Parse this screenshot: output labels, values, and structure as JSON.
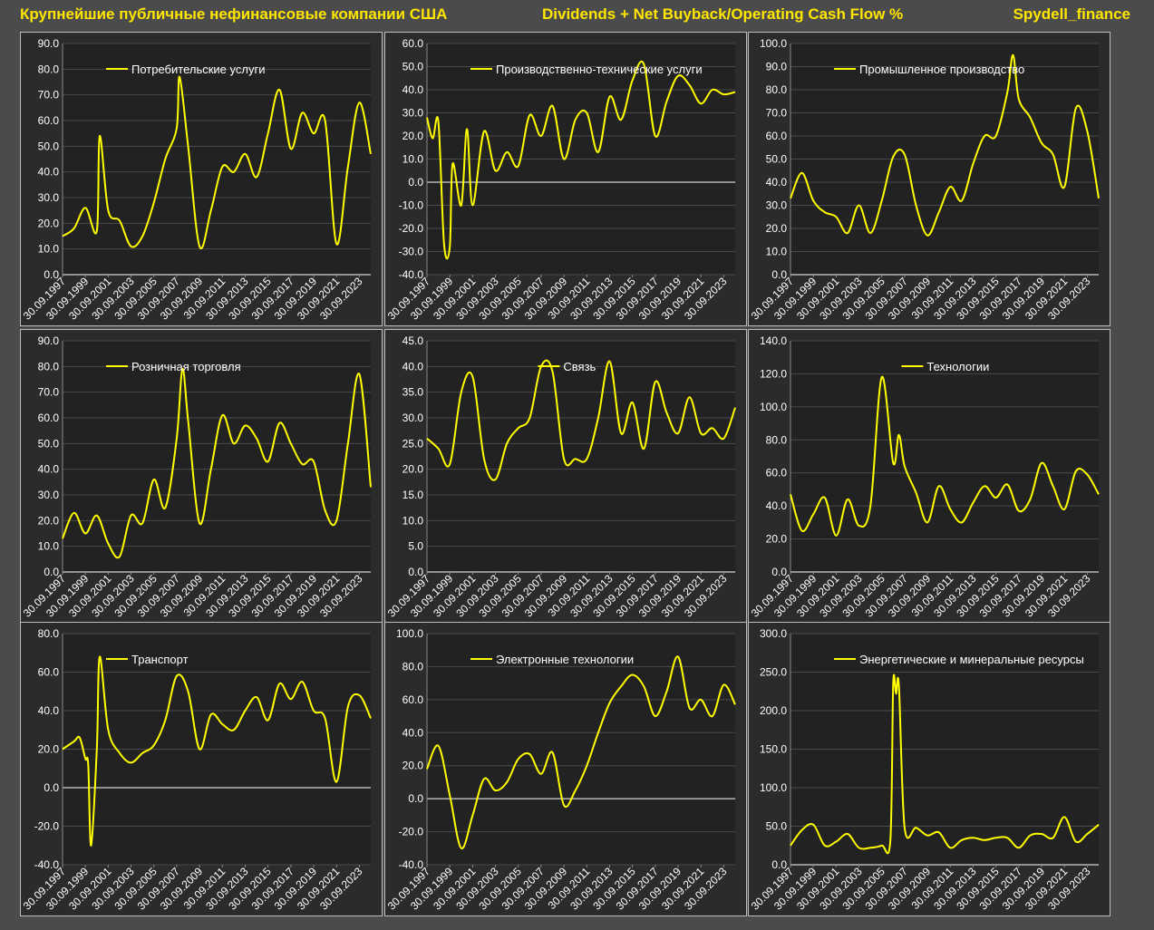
{
  "header": {
    "left": "Крупнейшие публичные нефинансовые компании США",
    "middle": "Dividends + Net Buyback/Operating Cash Flow %",
    "right": "Spydell_finance"
  },
  "colors": {
    "line": "#ffff00",
    "background": "#2b2b2b",
    "page": "#4b4b4b",
    "grid": "#4a4a4a",
    "text": "#ffffff"
  },
  "x_tick_labels": [
    "30.09.1997",
    "30.09.1999",
    "30.09.2001",
    "30.09.2003",
    "30.09.2005",
    "30.09.2007",
    "30.09.2009",
    "30.09.2011",
    "30.09.2013",
    "30.09.2015",
    "30.09.2017",
    "30.09.2019",
    "30.09.2021",
    "30.09.2023"
  ],
  "chart_data": [
    {
      "type": "line",
      "title": "",
      "legend": "Потребительские услуги",
      "legend_position": "top-left",
      "ylim": [
        0,
        90
      ],
      "y_ticks": [
        "0.0",
        "10.0",
        "20.0",
        "30.0",
        "40.0",
        "50.0",
        "60.0",
        "70.0",
        "80.0",
        "90.0"
      ],
      "x_range": [
        "30.09.1997",
        "30.09.2024"
      ],
      "grid": true,
      "series": [
        {
          "name": "Потребительские услуги",
          "x": [
            "30.09.1997",
            "30.09.1998",
            "30.09.1999",
            "30.09.2000",
            "31.12.2000",
            "30.09.2001",
            "30.09.2002",
            "30.09.2003",
            "30.09.2004",
            "30.09.2005",
            "30.09.2006",
            "30.09.2007",
            "31.12.2007",
            "30.09.2008",
            "30.09.2009",
            "30.09.2010",
            "30.09.2011",
            "30.09.2012",
            "30.09.2013",
            "30.09.2014",
            "30.09.2015",
            "30.09.2016",
            "30.09.2017",
            "30.09.2018",
            "30.09.2019",
            "30.09.2020",
            "30.09.2021",
            "30.09.2022",
            "30.09.2023",
            "30.09.2024"
          ],
          "values": [
            15,
            18,
            26,
            17,
            54,
            25,
            21,
            11,
            15,
            28,
            45,
            57,
            77,
            50,
            11,
            25,
            42,
            40,
            47,
            38,
            55,
            72,
            49,
            63,
            55,
            60,
            12,
            42,
            67,
            47
          ]
        }
      ]
    },
    {
      "type": "line",
      "title": "",
      "legend": "Производственно-технические услуги",
      "legend_position": "top-left",
      "ylim": [
        -40,
        60
      ],
      "y_ticks": [
        "-40.0",
        "-30.0",
        "-20.0",
        "-10.0",
        "0.0",
        "10.0",
        "20.0",
        "30.0",
        "40.0",
        "50.0",
        "60.0"
      ],
      "x_range": [
        "30.09.1997",
        "30.09.2024"
      ],
      "grid": true,
      "series": [
        {
          "name": "Производственно-технические услуги",
          "x": [
            "30.09.1997",
            "31.03.1998",
            "30.09.1998",
            "31.03.1999",
            "30.09.1999",
            "31.12.1999",
            "30.09.2000",
            "31.03.2001",
            "30.09.2001",
            "30.09.2002",
            "30.09.2003",
            "30.09.2004",
            "30.09.2005",
            "30.09.2006",
            "30.09.2007",
            "30.09.2008",
            "30.09.2009",
            "30.09.2010",
            "30.09.2011",
            "30.09.2012",
            "30.09.2013",
            "30.09.2014",
            "30.09.2015",
            "30.09.2016",
            "30.09.2017",
            "30.09.2018",
            "30.09.2019",
            "30.09.2020",
            "30.09.2021",
            "30.09.2022",
            "30.09.2023",
            "30.09.2024"
          ],
          "values": [
            28,
            19,
            26,
            -27,
            -28,
            8,
            -10,
            23,
            -10,
            22,
            5,
            13,
            7,
            29,
            20,
            33,
            10,
            27,
            30,
            13,
            37,
            27,
            44,
            51,
            20,
            35,
            46,
            42,
            34,
            40,
            38,
            39
          ]
        }
      ]
    },
    {
      "type": "line",
      "title": "",
      "legend": "Промышленное производство",
      "legend_position": "top-left",
      "ylim": [
        0,
        100
      ],
      "y_ticks": [
        "0.0",
        "10.0",
        "20.0",
        "30.0",
        "40.0",
        "50.0",
        "60.0",
        "70.0",
        "80.0",
        "90.0",
        "100.0"
      ],
      "x_range": [
        "30.09.1997",
        "30.09.2024"
      ],
      "grid": true,
      "series": [
        {
          "name": "Промышленное производство",
          "x": [
            "30.09.1997",
            "30.09.1998",
            "30.09.1999",
            "30.09.2000",
            "30.09.2001",
            "30.09.2002",
            "30.09.2003",
            "30.09.2004",
            "30.09.2005",
            "30.09.2006",
            "30.09.2007",
            "30.09.2008",
            "30.09.2009",
            "30.09.2010",
            "30.09.2011",
            "30.09.2012",
            "30.09.2013",
            "30.09.2014",
            "30.09.2015",
            "30.09.2016",
            "31.03.2017",
            "30.09.2017",
            "30.09.2018",
            "30.09.2019",
            "30.09.2020",
            "30.09.2021",
            "30.09.2022",
            "30.09.2023",
            "30.09.2024"
          ],
          "values": [
            33,
            44,
            32,
            27,
            25,
            18,
            30,
            18,
            32,
            51,
            52,
            30,
            17,
            27,
            38,
            32,
            48,
            60,
            60,
            79,
            95,
            76,
            68,
            57,
            52,
            38,
            72,
            62,
            33
          ]
        }
      ]
    },
    {
      "type": "line",
      "title": "",
      "legend": "Розничная торговля",
      "legend_position": "top-left",
      "ylim": [
        0,
        90
      ],
      "y_ticks": [
        "0.0",
        "10.0",
        "20.0",
        "30.0",
        "40.0",
        "50.0",
        "60.0",
        "70.0",
        "80.0",
        "90.0"
      ],
      "x_range": [
        "30.09.1997",
        "30.09.2024"
      ],
      "grid": true,
      "series": [
        {
          "name": "Розничная торговля",
          "x": [
            "30.09.1997",
            "30.09.1998",
            "30.09.1999",
            "30.09.2000",
            "30.09.2001",
            "30.09.2002",
            "30.09.2003",
            "30.09.2004",
            "30.09.2005",
            "30.09.2006",
            "30.09.2007",
            "31.03.2008",
            "30.09.2008",
            "30.09.2009",
            "30.09.2010",
            "30.09.2011",
            "30.09.2012",
            "30.09.2013",
            "30.09.2014",
            "30.09.2015",
            "30.09.2016",
            "30.09.2017",
            "30.09.2018",
            "30.09.2019",
            "30.09.2020",
            "30.09.2021",
            "30.09.2022",
            "30.09.2023",
            "30.09.2024"
          ],
          "values": [
            13,
            23,
            15,
            22,
            11,
            6,
            22,
            19,
            36,
            25,
            52,
            79,
            59,
            19,
            40,
            61,
            50,
            57,
            52,
            43,
            58,
            50,
            42,
            43,
            24,
            20,
            50,
            77,
            33
          ]
        }
      ]
    },
    {
      "type": "line",
      "title": "",
      "legend": "Связь",
      "legend_position": "top-center",
      "ylim": [
        0,
        45
      ],
      "y_ticks": [
        "0.0",
        "5.0",
        "10.0",
        "15.0",
        "20.0",
        "25.0",
        "30.0",
        "35.0",
        "40.0",
        "45.0"
      ],
      "x_range": [
        "30.09.1997",
        "30.09.2024"
      ],
      "grid": true,
      "series": [
        {
          "name": "Связь",
          "x": [
            "30.09.1997",
            "30.09.1998",
            "30.09.1999",
            "30.09.2000",
            "30.09.2001",
            "30.09.2002",
            "30.09.2003",
            "30.09.2004",
            "30.09.2005",
            "30.09.2006",
            "30.09.2007",
            "30.09.2008",
            "30.09.2009",
            "30.09.2010",
            "30.09.2011",
            "30.09.2012",
            "30.09.2013",
            "30.09.2014",
            "30.09.2015",
            "30.09.2016",
            "30.09.2017",
            "30.09.2018",
            "30.09.2019",
            "30.09.2020",
            "30.09.2021",
            "30.09.2022",
            "30.09.2023",
            "30.09.2024"
          ],
          "values": [
            26,
            24,
            21,
            35,
            38,
            22,
            18,
            25,
            28,
            30,
            40,
            39,
            22,
            22,
            22,
            30,
            41,
            27,
            33,
            24,
            37,
            31,
            27,
            34,
            27,
            28,
            26,
            32
          ]
        }
      ]
    },
    {
      "type": "line",
      "title": "",
      "legend": "Технологии",
      "legend_position": "top-center",
      "ylim": [
        0,
        140
      ],
      "y_ticks": [
        "0.0",
        "20.0",
        "40.0",
        "60.0",
        "80.0",
        "100.0",
        "120.0",
        "140.0"
      ],
      "x_range": [
        "30.09.1997",
        "30.09.2024"
      ],
      "grid": true,
      "series": [
        {
          "name": "Технологии",
          "x": [
            "30.09.1997",
            "30.09.1998",
            "30.09.1999",
            "30.09.2000",
            "30.09.2001",
            "30.09.2002",
            "30.09.2003",
            "30.09.2004",
            "30.09.2005",
            "30.09.2006",
            "31.03.2007",
            "30.09.2007",
            "30.09.2008",
            "30.09.2009",
            "30.09.2010",
            "30.09.2011",
            "30.09.2012",
            "30.09.2013",
            "30.09.2014",
            "30.09.2015",
            "30.09.2016",
            "30.09.2017",
            "30.09.2018",
            "30.09.2019",
            "30.09.2020",
            "30.09.2021",
            "30.09.2022",
            "30.09.2023",
            "30.09.2024"
          ],
          "values": [
            47,
            25,
            35,
            45,
            22,
            44,
            28,
            40,
            118,
            66,
            83,
            64,
            48,
            30,
            52,
            38,
            30,
            42,
            52,
            45,
            53,
            37,
            44,
            66,
            52,
            38,
            61,
            59,
            47
          ]
        }
      ]
    },
    {
      "type": "line",
      "title": "",
      "legend": "Транспорт",
      "legend_position": "top-left",
      "ylim": [
        -40,
        80
      ],
      "y_ticks": [
        "-40.0",
        "-20.0",
        "0.0",
        "20.0",
        "40.0",
        "60.0",
        "80.0"
      ],
      "x_range": [
        "30.09.1997",
        "30.09.2024"
      ],
      "grid": true,
      "series": [
        {
          "name": "Транспорт",
          "x": [
            "30.09.1997",
            "30.09.1998",
            "31.03.1999",
            "30.09.1999",
            "31.12.1999",
            "31.03.2000",
            "30.09.2000",
            "31.12.2000",
            "30.09.2001",
            "30.09.2002",
            "30.09.2003",
            "30.09.2004",
            "30.09.2005",
            "30.09.2006",
            "30.09.2007",
            "30.09.2008",
            "30.09.2009",
            "30.09.2010",
            "30.09.2011",
            "30.09.2012",
            "30.09.2013",
            "30.09.2014",
            "30.09.2015",
            "30.09.2016",
            "30.09.2017",
            "30.09.2018",
            "30.09.2019",
            "30.09.2020",
            "30.09.2021",
            "30.09.2022",
            "30.09.2023",
            "30.09.2024"
          ],
          "values": [
            20,
            24,
            26,
            15,
            12,
            -30,
            20,
            68,
            30,
            18,
            13,
            18,
            22,
            35,
            58,
            50,
            20,
            38,
            33,
            30,
            40,
            47,
            35,
            54,
            46,
            55,
            40,
            36,
            3,
            42,
            48,
            36
          ]
        }
      ]
    },
    {
      "type": "line",
      "title": "",
      "legend": "Электронные технологии",
      "legend_position": "top-left",
      "ylim": [
        -40,
        100
      ],
      "y_ticks": [
        "-40.0",
        "-20.0",
        "0.0",
        "20.0",
        "40.0",
        "60.0",
        "80.0",
        "100.0"
      ],
      "x_range": [
        "30.09.1997",
        "30.09.2024"
      ],
      "grid": true,
      "series": [
        {
          "name": "Электронные технологии",
          "x": [
            "30.09.1997",
            "30.09.1998",
            "30.09.1999",
            "30.09.2000",
            "30.09.2001",
            "30.09.2002",
            "30.09.2003",
            "30.09.2004",
            "30.09.2005",
            "30.09.2006",
            "30.09.2007",
            "30.09.2008",
            "30.09.2009",
            "30.09.2010",
            "30.09.2011",
            "30.09.2012",
            "30.09.2013",
            "30.09.2014",
            "30.09.2015",
            "30.09.2016",
            "30.09.2017",
            "30.09.2018",
            "30.09.2019",
            "30.09.2020",
            "30.09.2021",
            "30.09.2022",
            "30.09.2023",
            "30.09.2024"
          ],
          "values": [
            18,
            32,
            2,
            -30,
            -10,
            12,
            5,
            10,
            24,
            27,
            15,
            28,
            -4,
            5,
            20,
            40,
            58,
            68,
            75,
            68,
            50,
            65,
            86,
            55,
            60,
            50,
            69,
            57
          ]
        }
      ]
    },
    {
      "type": "line",
      "title": "",
      "legend": "Энергетические и минеральные ресурсы",
      "legend_position": "top-left",
      "ylim": [
        0,
        300
      ],
      "y_ticks": [
        "0.0",
        "50.0",
        "100.0",
        "150.0",
        "200.0",
        "250.0",
        "300.0"
      ],
      "x_range": [
        "30.09.1997",
        "30.09.2024"
      ],
      "grid": true,
      "series": [
        {
          "name": "Энергетические и минеральные ресурсы",
          "x": [
            "30.09.1997",
            "30.09.1998",
            "30.09.1999",
            "30.09.2000",
            "30.09.2001",
            "30.09.2002",
            "30.09.2003",
            "30.09.2004",
            "30.09.2005",
            "30.06.2006",
            "30.09.2006",
            "31.12.2006",
            "31.03.2007",
            "30.09.2007",
            "30.09.2008",
            "30.09.2009",
            "30.09.2010",
            "30.09.2011",
            "30.09.2012",
            "30.09.2013",
            "30.09.2014",
            "30.09.2015",
            "30.09.2016",
            "30.09.2017",
            "30.09.2018",
            "30.09.2019",
            "30.09.2020",
            "30.09.2021",
            "30.09.2022",
            "30.09.2023",
            "30.09.2024"
          ],
          "values": [
            25,
            45,
            52,
            25,
            30,
            40,
            22,
            22,
            25,
            32,
            235,
            222,
            232,
            48,
            48,
            38,
            42,
            22,
            32,
            35,
            32,
            35,
            35,
            22,
            38,
            40,
            35,
            62,
            30,
            40,
            52
          ]
        }
      ]
    }
  ]
}
